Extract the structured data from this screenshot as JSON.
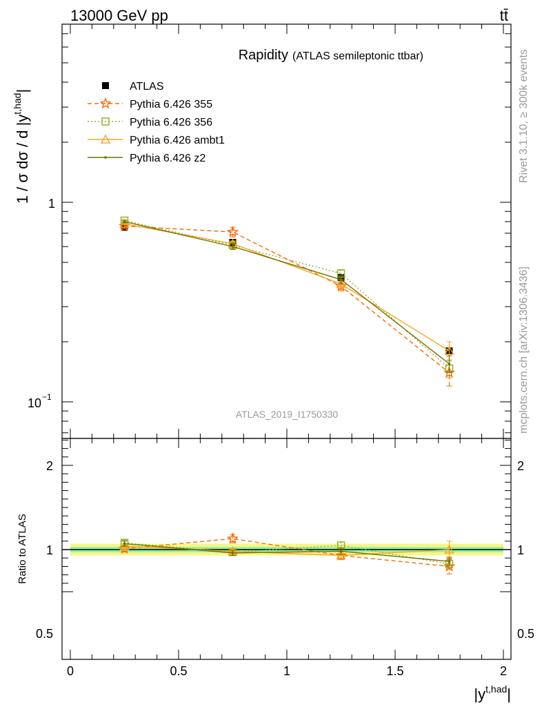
{
  "header": {
    "energy_label": "13000 GeV pp",
    "process_label": "tt̄"
  },
  "side_labels": {
    "rivet": "Rivet 3.1.10, ≥ 300k events",
    "source": "mcplots.cern.ch [arXiv:1306.3436]"
  },
  "chart_data": [
    {
      "type": "line",
      "panel": "main",
      "title": "Rapidity",
      "subtitle": "(ATLAS semileptonic ttbar)",
      "watermark": "ATLAS_2019_I1750330",
      "ylabel": "1 / σ dσ / d |y^{t,had}|",
      "yscale": "log",
      "ylim": [
        0.07,
        9.0
      ],
      "xlim": [
        -0.05,
        2.05
      ],
      "ytick_labels": [
        "1",
        "10"
      ],
      "ytick_minus1_exponent": "−1",
      "x": [
        0.25,
        0.75,
        1.25,
        1.75
      ],
      "data": {
        "name": "ATLAS",
        "values": [
          0.75,
          0.63,
          0.42,
          0.18
        ],
        "errors": [
          0.02,
          0.02,
          0.015,
          0.01
        ]
      },
      "series": [
        {
          "name": "Pythia 6.426 355",
          "color": "#ff6600",
          "values": [
            0.76,
            0.71,
            0.38,
            0.14
          ],
          "errors": [
            0.01,
            0.04,
            0.02,
            0.02
          ]
        },
        {
          "name": "Pythia 6.426 356",
          "color": "#8fac1f",
          "values": [
            0.81,
            0.61,
            0.44,
            0.147
          ],
          "errors": [
            0.01,
            0.02,
            0.02,
            0.015
          ]
        },
        {
          "name": "Pythia 6.426 ambt1",
          "color": "#f7a520",
          "values": [
            0.78,
            0.62,
            0.39,
            0.18
          ],
          "errors": [
            0.01,
            0.02,
            0.02,
            0.02
          ]
        },
        {
          "name": "Pythia 6.426 z2",
          "color": "#707000",
          "values": [
            0.8,
            0.6,
            0.41,
            0.155
          ],
          "errors": [
            0.01,
            0.02,
            0.02,
            0.015
          ]
        }
      ]
    },
    {
      "type": "line",
      "panel": "ratio",
      "ylabel": "Ratio to ATLAS",
      "xlabel": "|y^{t,had}|",
      "ylim": [
        0.4,
        2.5
      ],
      "ytick_labels": [
        "0.5",
        "1",
        "2"
      ],
      "xtick_labels": [
        "0",
        "0.5",
        "1",
        "1.5",
        "2"
      ],
      "x": [
        0.25,
        0.75,
        1.25,
        1.75
      ],
      "band": {
        "x_range": [
          0.0,
          2.0
        ],
        "inner": 0.03,
        "outer": 0.07
      },
      "series": [
        {
          "name": "Pythia 6.426 355",
          "color": "#ff6600",
          "values": [
            1.01,
            1.13,
            0.93,
            0.8
          ],
          "errors": [
            0.04,
            0.05,
            0.05,
            0.09
          ]
        },
        {
          "name": "Pythia 6.426 356",
          "color": "#8fac1f",
          "values": [
            1.08,
            0.97,
            1.05,
            0.83
          ],
          "errors": [
            0.03,
            0.03,
            0.04,
            0.05
          ]
        },
        {
          "name": "Pythia 6.426 ambt1",
          "color": "#f7a520",
          "values": [
            1.04,
            0.98,
            0.93,
            1.0
          ],
          "errors": [
            0.03,
            0.03,
            0.04,
            0.1
          ]
        },
        {
          "name": "Pythia 6.426 z2",
          "color": "#707000",
          "values": [
            1.07,
            0.96,
            0.98,
            0.86
          ],
          "errors": [
            0.03,
            0.03,
            0.04,
            0.05
          ]
        }
      ]
    }
  ]
}
